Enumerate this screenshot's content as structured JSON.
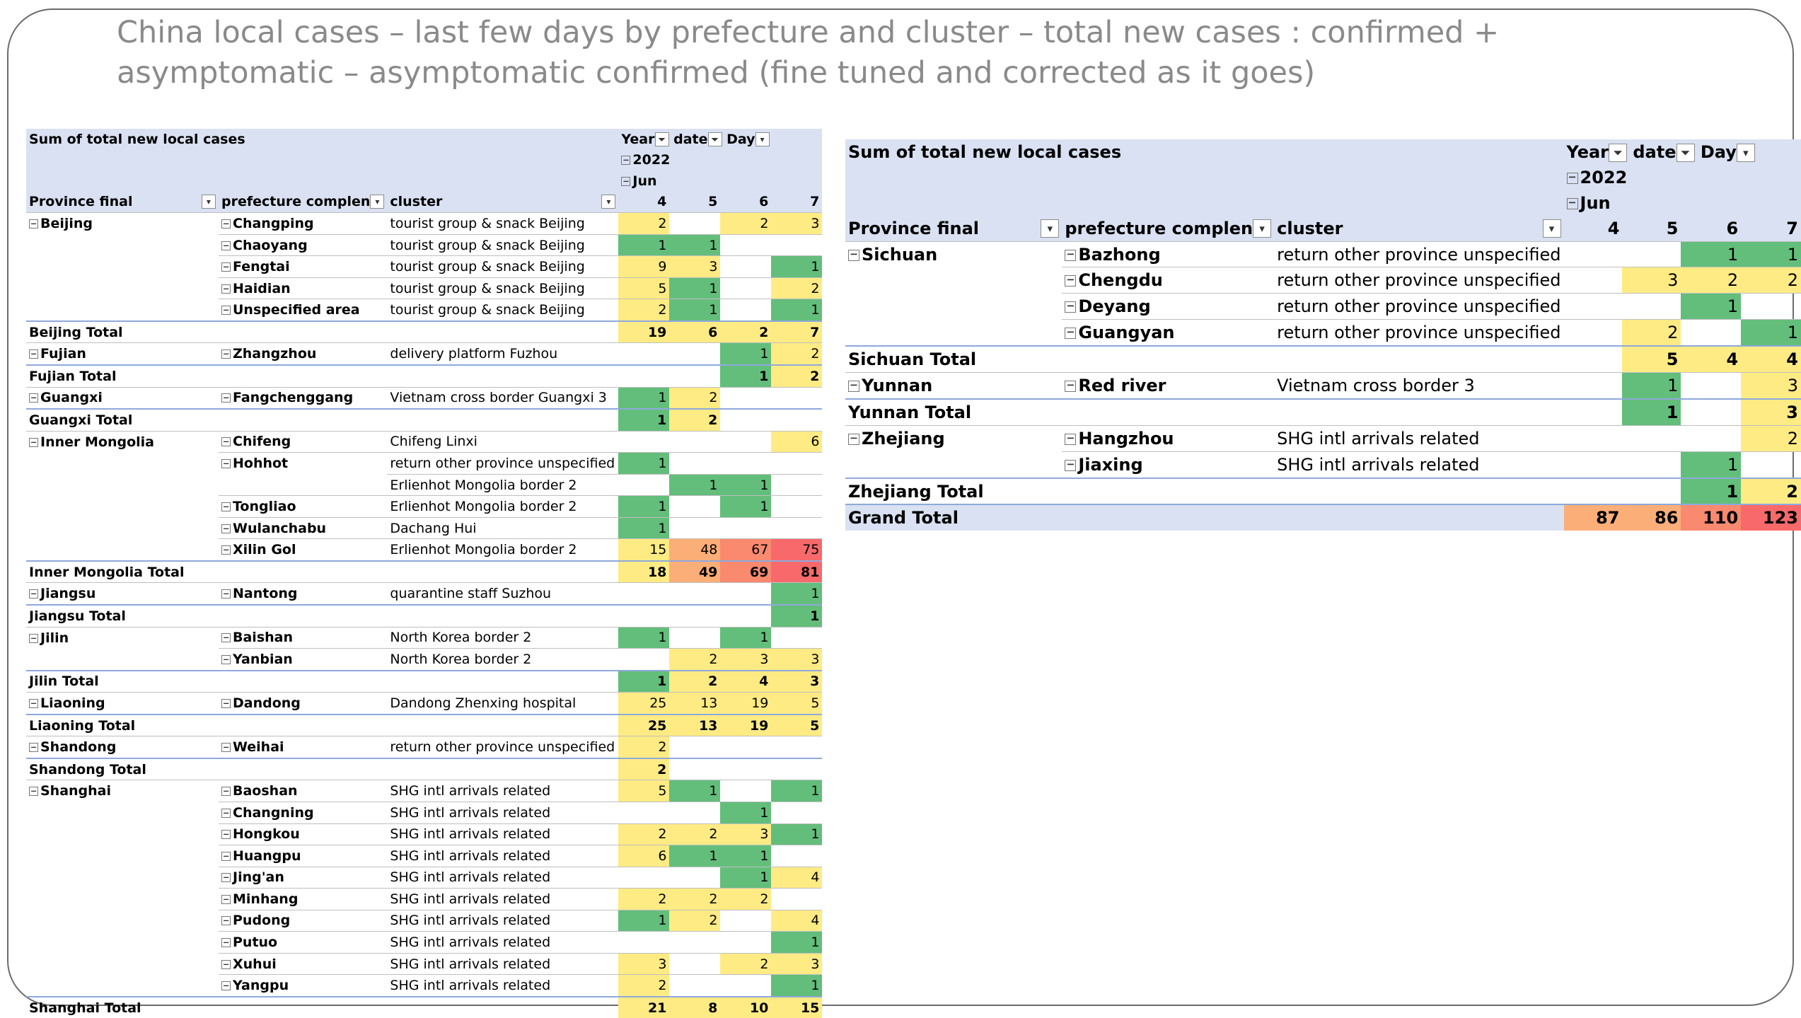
{
  "title": {
    "line1": "China local cases – last few days by prefecture and cluster – total new cases : confirmed +",
    "line2": "asymptomatic – asymptomatic confirmed (fine tuned and corrected as it goes)"
  },
  "colors": {
    "green": "#63be7b",
    "yellow": "#ffeb84",
    "orange_light": "#fbae78",
    "orange": "#f9896f",
    "red": "#f8696b",
    "header_bg": "#d9e1f2"
  },
  "pivot_header": {
    "caption": "Sum of total new local cases",
    "year_label": "Year",
    "date_label": "date",
    "day_label": "Day",
    "year_value": "2022",
    "month_value": "Jun",
    "province_label": "Province final",
    "prefecture_label": "prefecture complen",
    "cluster_label": "cluster",
    "days": [
      "4",
      "5",
      "6",
      "7"
    ],
    "filter_icon": "filter-dropdown-icon",
    "dropdown_icon": "chevron-down-icon",
    "collapse_icon": "minus-box-icon"
  },
  "left_rows": [
    {
      "type": "data",
      "province": "Beijing",
      "prefecture": "Changping",
      "cluster": "tourist group & snack Beijing",
      "values": [
        "2",
        "",
        "2",
        "3"
      ],
      "colors": [
        "y",
        "",
        "y",
        "y"
      ]
    },
    {
      "type": "data",
      "province": "",
      "prefecture": "Chaoyang",
      "cluster": "tourist group & snack Beijing",
      "values": [
        "1",
        "1",
        "",
        ""
      ],
      "colors": [
        "g",
        "g",
        "",
        ""
      ]
    },
    {
      "type": "data",
      "province": "",
      "prefecture": "Fengtai",
      "cluster": "tourist group & snack Beijing",
      "values": [
        "9",
        "3",
        "",
        "1"
      ],
      "colors": [
        "y",
        "y",
        "",
        "g"
      ]
    },
    {
      "type": "data",
      "province": "",
      "prefecture": "Haidian",
      "cluster": "tourist group & snack Beijing",
      "values": [
        "5",
        "1",
        "",
        "2"
      ],
      "colors": [
        "y",
        "g",
        "",
        "y"
      ]
    },
    {
      "type": "data",
      "province": "",
      "prefecture": "Unspecified area",
      "cluster": "tourist group & snack Beijing",
      "values": [
        "2",
        "1",
        "",
        "1"
      ],
      "colors": [
        "y",
        "g",
        "",
        "g"
      ]
    },
    {
      "type": "total",
      "label": "Beijing Total",
      "values": [
        "19",
        "6",
        "2",
        "7"
      ],
      "colors": [
        "y",
        "y",
        "y",
        "y"
      ]
    },
    {
      "type": "data",
      "province": "Fujian",
      "prefecture": "Zhangzhou",
      "cluster": "delivery platform Fuzhou",
      "values": [
        "",
        "",
        "1",
        "2"
      ],
      "colors": [
        "",
        "",
        "g",
        "y"
      ]
    },
    {
      "type": "total",
      "label": "Fujian Total",
      "values": [
        "",
        "",
        "1",
        "2"
      ],
      "colors": [
        "",
        "",
        "g",
        "y"
      ]
    },
    {
      "type": "data",
      "province": "Guangxi",
      "prefecture": "Fangchenggang",
      "cluster": "Vietnam cross border Guangxi 3",
      "values": [
        "1",
        "2",
        "",
        ""
      ],
      "colors": [
        "g",
        "y",
        "",
        ""
      ]
    },
    {
      "type": "total",
      "label": "Guangxi Total",
      "values": [
        "1",
        "2",
        "",
        ""
      ],
      "colors": [
        "g",
        "y",
        "",
        ""
      ]
    },
    {
      "type": "data",
      "province": "Inner Mongolia",
      "prefecture": "Chifeng",
      "cluster": "Chifeng Linxi",
      "values": [
        "",
        "",
        "",
        "6"
      ],
      "colors": [
        "",
        "",
        "",
        "y"
      ]
    },
    {
      "type": "data",
      "province": "",
      "prefecture": "Hohhot",
      "cluster": "return other province unspecified",
      "values": [
        "1",
        "",
        "",
        ""
      ],
      "colors": [
        "g",
        "",
        "",
        ""
      ]
    },
    {
      "type": "data",
      "province": "",
      "prefecture": "",
      "cluster": "Erlienhot Mongolia border 2",
      "values": [
        "",
        "1",
        "1",
        ""
      ],
      "colors": [
        "",
        "g",
        "g",
        ""
      ]
    },
    {
      "type": "data",
      "province": "",
      "prefecture": "Tongliao",
      "cluster": "Erlienhot Mongolia border 2",
      "values": [
        "1",
        "",
        "1",
        ""
      ],
      "colors": [
        "g",
        "",
        "g",
        ""
      ]
    },
    {
      "type": "data",
      "province": "",
      "prefecture": "Wulanchabu",
      "cluster": "Dachang Hui",
      "values": [
        "1",
        "",
        "",
        ""
      ],
      "colors": [
        "g",
        "",
        "",
        ""
      ]
    },
    {
      "type": "data",
      "province": "",
      "prefecture": "Xilin Gol",
      "cluster": "Erlienhot Mongolia border 2",
      "values": [
        "15",
        "48",
        "67",
        "75"
      ],
      "colors": [
        "y",
        "ol",
        "o",
        "r"
      ]
    },
    {
      "type": "total",
      "label": "Inner Mongolia Total",
      "values": [
        "18",
        "49",
        "69",
        "81"
      ],
      "colors": [
        "y",
        "ol",
        "o",
        "r"
      ]
    },
    {
      "type": "data",
      "province": "Jiangsu",
      "prefecture": "Nantong",
      "cluster": "quarantine staff Suzhou",
      "values": [
        "",
        "",
        "",
        "1"
      ],
      "colors": [
        "",
        "",
        "",
        "g"
      ]
    },
    {
      "type": "total",
      "label": "Jiangsu Total",
      "values": [
        "",
        "",
        "",
        "1"
      ],
      "colors": [
        "",
        "",
        "",
        "g"
      ]
    },
    {
      "type": "data",
      "province": "Jilin",
      "prefecture": "Baishan",
      "cluster": "North Korea border 2",
      "values": [
        "1",
        "",
        "1",
        ""
      ],
      "colors": [
        "g",
        "",
        "g",
        ""
      ]
    },
    {
      "type": "data",
      "province": "",
      "prefecture": "Yanbian",
      "cluster": "North Korea border 2",
      "values": [
        "",
        "2",
        "3",
        "3"
      ],
      "colors": [
        "",
        "y",
        "y",
        "y"
      ]
    },
    {
      "type": "total",
      "label": "Jilin Total",
      "values": [
        "1",
        "2",
        "4",
        "3"
      ],
      "colors": [
        "g",
        "y",
        "y",
        "y"
      ]
    },
    {
      "type": "data",
      "province": "Liaoning",
      "prefecture": "Dandong",
      "cluster": "Dandong Zhenxing hospital",
      "values": [
        "25",
        "13",
        "19",
        "5"
      ],
      "colors": [
        "y",
        "y",
        "y",
        "y"
      ]
    },
    {
      "type": "total",
      "label": "Liaoning Total",
      "values": [
        "25",
        "13",
        "19",
        "5"
      ],
      "colors": [
        "y",
        "y",
        "y",
        "y"
      ]
    },
    {
      "type": "data",
      "province": "Shandong",
      "prefecture": "Weihai",
      "cluster": "return other province unspecified",
      "values": [
        "2",
        "",
        "",
        ""
      ],
      "colors": [
        "y",
        "",
        "",
        ""
      ]
    },
    {
      "type": "total",
      "label": "Shandong Total",
      "values": [
        "2",
        "",
        "",
        ""
      ],
      "colors": [
        "y",
        "",
        "",
        ""
      ]
    },
    {
      "type": "data",
      "province": "Shanghai",
      "prefecture": "Baoshan",
      "cluster": "SHG intl arrivals related",
      "values": [
        "5",
        "1",
        "",
        "1"
      ],
      "colors": [
        "y",
        "g",
        "",
        "g"
      ]
    },
    {
      "type": "data",
      "province": "",
      "prefecture": "Changning",
      "cluster": "SHG intl arrivals related",
      "values": [
        "",
        "",
        "1",
        ""
      ],
      "colors": [
        "",
        "",
        "g",
        ""
      ]
    },
    {
      "type": "data",
      "province": "",
      "prefecture": "Hongkou",
      "cluster": "SHG intl arrivals related",
      "values": [
        "2",
        "2",
        "3",
        "1"
      ],
      "colors": [
        "y",
        "y",
        "y",
        "g"
      ]
    },
    {
      "type": "data",
      "province": "",
      "prefecture": "Huangpu",
      "cluster": "SHG intl arrivals related",
      "values": [
        "6",
        "1",
        "1",
        ""
      ],
      "colors": [
        "y",
        "g",
        "g",
        ""
      ]
    },
    {
      "type": "data",
      "province": "",
      "prefecture": "Jing'an",
      "cluster": "SHG intl arrivals related",
      "values": [
        "",
        "",
        "1",
        "4"
      ],
      "colors": [
        "",
        "",
        "g",
        "y"
      ]
    },
    {
      "type": "data",
      "province": "",
      "prefecture": "Minhang",
      "cluster": "SHG intl arrivals related",
      "values": [
        "2",
        "2",
        "2",
        ""
      ],
      "colors": [
        "y",
        "y",
        "y",
        ""
      ]
    },
    {
      "type": "data",
      "province": "",
      "prefecture": "Pudong",
      "cluster": "SHG intl arrivals related",
      "values": [
        "1",
        "2",
        "",
        "4"
      ],
      "colors": [
        "g",
        "y",
        "",
        "y"
      ]
    },
    {
      "type": "data",
      "province": "",
      "prefecture": "Putuo",
      "cluster": "SHG intl arrivals related",
      "values": [
        "",
        "",
        "",
        "1"
      ],
      "colors": [
        "",
        "",
        "",
        "g"
      ]
    },
    {
      "type": "data",
      "province": "",
      "prefecture": "Xuhui",
      "cluster": "SHG intl arrivals related",
      "values": [
        "3",
        "",
        "2",
        "3"
      ],
      "colors": [
        "y",
        "",
        "y",
        "y"
      ]
    },
    {
      "type": "data",
      "province": "",
      "prefecture": "Yangpu",
      "cluster": "SHG intl arrivals related",
      "values": [
        "2",
        "",
        "",
        "1"
      ],
      "colors": [
        "y",
        "",
        "",
        "g"
      ]
    },
    {
      "type": "total",
      "label": "Shanghai Total",
      "values": [
        "21",
        "8",
        "10",
        "15"
      ],
      "colors": [
        "y",
        "y",
        "y",
        "y"
      ]
    }
  ],
  "right_rows": [
    {
      "type": "data",
      "province": "Sichuan",
      "prefecture": "Bazhong",
      "cluster": "return other province unspecified",
      "values": [
        "",
        "",
        "1",
        "1"
      ],
      "colors": [
        "",
        "",
        "g",
        "g"
      ]
    },
    {
      "type": "data",
      "province": "",
      "prefecture": "Chengdu",
      "cluster": "return other province unspecified",
      "values": [
        "",
        "3",
        "2",
        "2"
      ],
      "colors": [
        "",
        "y",
        "y",
        "y"
      ]
    },
    {
      "type": "data",
      "province": "",
      "prefecture": "Deyang",
      "cluster": "return other province unspecified",
      "values": [
        "",
        "",
        "1",
        ""
      ],
      "colors": [
        "",
        "",
        "g",
        ""
      ]
    },
    {
      "type": "data",
      "province": "",
      "prefecture": "Guangyan",
      "cluster": "return other province unspecified",
      "values": [
        "",
        "2",
        "",
        "1"
      ],
      "colors": [
        "",
        "y",
        "",
        "g"
      ]
    },
    {
      "type": "total",
      "label": "Sichuan Total",
      "values": [
        "",
        "5",
        "4",
        "4"
      ],
      "colors": [
        "",
        "y",
        "y",
        "y"
      ]
    },
    {
      "type": "data",
      "province": "Yunnan",
      "prefecture": "Red river",
      "cluster": "Vietnam cross border 3",
      "values": [
        "",
        "1",
        "",
        "3"
      ],
      "colors": [
        "",
        "g",
        "",
        "y"
      ]
    },
    {
      "type": "total",
      "label": "Yunnan Total",
      "values": [
        "",
        "1",
        "",
        "3"
      ],
      "colors": [
        "",
        "g",
        "",
        "y"
      ]
    },
    {
      "type": "data",
      "province": "Zhejiang",
      "prefecture": "Hangzhou",
      "cluster": "SHG intl arrivals related",
      "values": [
        "",
        "",
        "",
        "2"
      ],
      "colors": [
        "",
        "",
        "",
        "y"
      ]
    },
    {
      "type": "data",
      "province": "",
      "prefecture": "Jiaxing",
      "cluster": "SHG intl arrivals related",
      "values": [
        "",
        "",
        "1",
        ""
      ],
      "colors": [
        "",
        "",
        "g",
        ""
      ]
    },
    {
      "type": "total",
      "label": "Zhejiang Total",
      "values": [
        "",
        "",
        "1",
        "2"
      ],
      "colors": [
        "",
        "",
        "g",
        "y"
      ]
    },
    {
      "type": "grand",
      "label": "Grand Total",
      "values": [
        "87",
        "86",
        "110",
        "123"
      ],
      "colors": [
        "ol",
        "ol",
        "o",
        "r"
      ]
    }
  ]
}
